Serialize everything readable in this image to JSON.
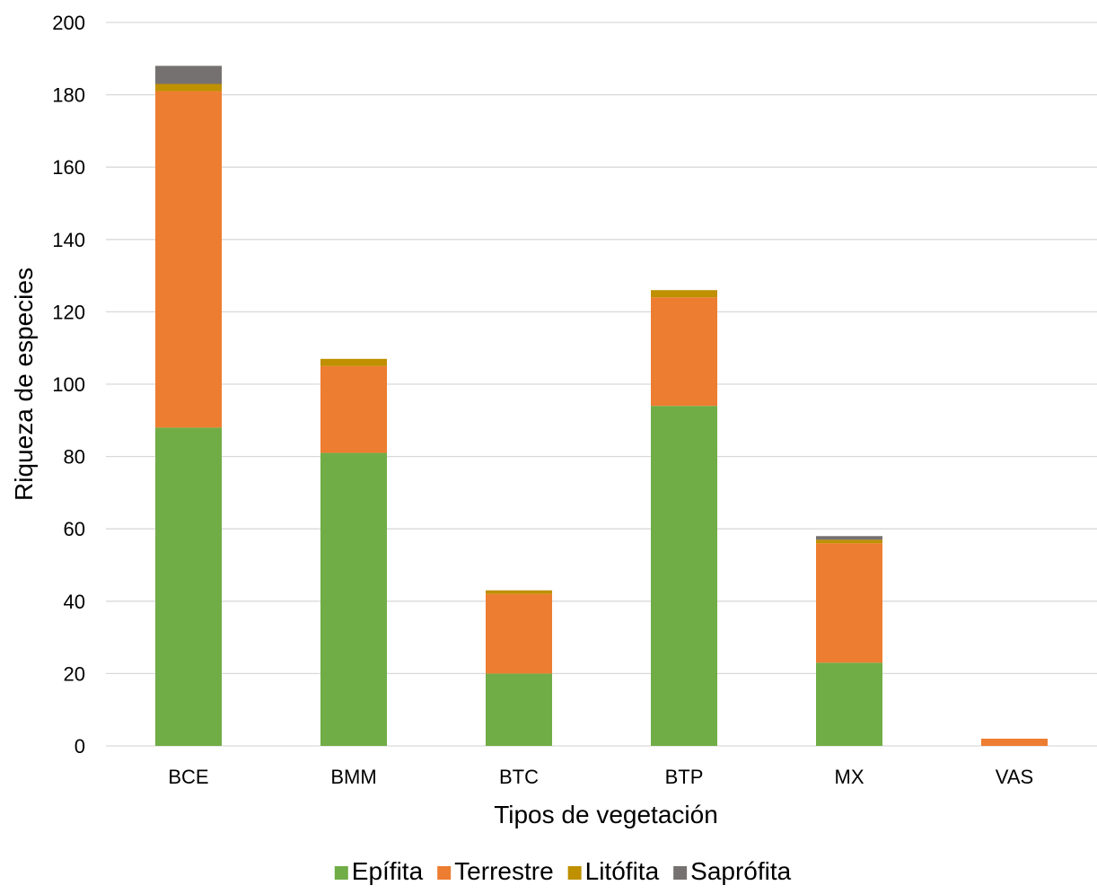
{
  "chart_data": {
    "type": "bar",
    "stacked": true,
    "title": "",
    "xlabel": "Tipos de vegetación",
    "ylabel": "Riqueza de especies",
    "ylim": [
      0,
      200
    ],
    "yticks": [
      0,
      20,
      40,
      60,
      80,
      100,
      120,
      140,
      160,
      180,
      200
    ],
    "grid": true,
    "legend_position": "bottom",
    "categories": [
      "BCE",
      "BMM",
      "BTC",
      "BTP",
      "MX",
      "VAS"
    ],
    "series": [
      {
        "name": "Epífita",
        "color": "#70AD47",
        "values": [
          88,
          81,
          20,
          94,
          23,
          0
        ]
      },
      {
        "name": "Terrestre",
        "color": "#ED7D31",
        "values": [
          93,
          24,
          22,
          30,
          33,
          2
        ]
      },
      {
        "name": "Litófita",
        "color": "#BF9000",
        "values": [
          2,
          2,
          1,
          2,
          1,
          0
        ]
      },
      {
        "name": "Saprófita",
        "color": "#767171",
        "values": [
          5,
          0,
          0,
          0,
          1,
          0
        ]
      }
    ]
  }
}
